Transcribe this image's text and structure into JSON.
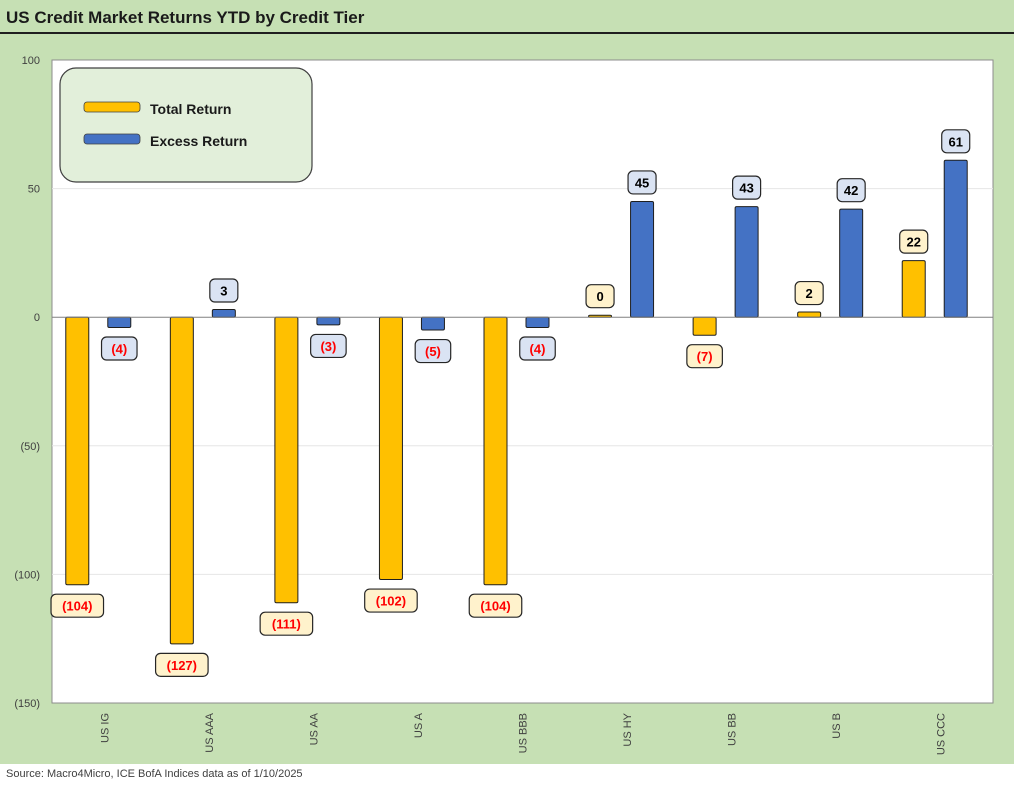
{
  "chart_data": {
    "type": "bar",
    "title": "US Credit Market Returns YTD by Credit Tier",
    "categories": [
      "US IG",
      "US AAA",
      "US AA",
      "US A",
      "US BBB",
      "US HY",
      "US BB",
      "US B",
      "US CCC"
    ],
    "series": [
      {
        "name": "Total Return",
        "values": [
          -104,
          -127,
          -111,
          -102,
          -104,
          0,
          -7,
          2,
          22
        ],
        "labels": [
          "(104)",
          "(127)",
          "(111)",
          "(102)",
          "(104)",
          "0",
          "(7)",
          "2",
          "22"
        ]
      },
      {
        "name": "Excess Return",
        "values": [
          -4,
          3,
          -3,
          -5,
          -4,
          45,
          43,
          42,
          61
        ],
        "labels": [
          "(4)",
          "3",
          "(3)",
          "(5)",
          "(4)",
          "45",
          "43",
          "42",
          "61"
        ]
      }
    ],
    "yticks": [
      100,
      50,
      0,
      -50,
      -100,
      -150
    ],
    "ytick_labels": [
      "100",
      "50",
      "0",
      "(50)",
      "(100)",
      "(150)"
    ],
    "ylim": [
      -150,
      100
    ],
    "xlabel": "",
    "ylabel": "",
    "legend_position": "top-left",
    "grid": true
  },
  "colors": {
    "total_return": "#ffc000",
    "excess_return": "#4472c4",
    "frame_background": "#c6e0b4",
    "total_label_fill": "#fff2cc",
    "excess_label_fill": "#dae3f3",
    "negative_label_text": "#ff0000",
    "positive_label_text": "#000000"
  },
  "source_note": "Source: Macro4Micro, ICE BofA Indices     data as of 1/10/2025"
}
